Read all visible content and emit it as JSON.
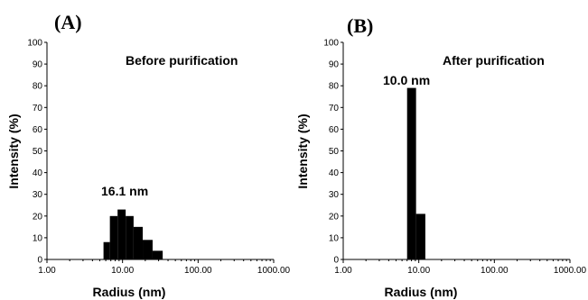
{
  "chart_data": [
    {
      "type": "bar",
      "panel_label": "(A)",
      "annotation": "Before purification",
      "peak_label": "16.1 nm",
      "xlabel": "Radius (nm)",
      "ylabel": "Intensity (%)",
      "x_scale": "log",
      "xlim": [
        1,
        1000
      ],
      "ylim": [
        0,
        100
      ],
      "x_ticks": [
        "1.00",
        "10.00",
        "100.00",
        "1000.00"
      ],
      "y_ticks": [
        "0",
        "10",
        "20",
        "30",
        "40",
        "50",
        "60",
        "70",
        "80",
        "90",
        "100"
      ],
      "grid": false,
      "bars": [
        {
          "x_from": 5.6,
          "x_to": 6.8,
          "value": 8
        },
        {
          "x_from": 6.8,
          "x_to": 8.6,
          "value": 20
        },
        {
          "x_from": 8.6,
          "x_to": 11.0,
          "value": 23
        },
        {
          "x_from": 11.0,
          "x_to": 14.0,
          "value": 20
        },
        {
          "x_from": 14.0,
          "x_to": 18.5,
          "value": 15
        },
        {
          "x_from": 18.5,
          "x_to": 25.0,
          "value": 9
        },
        {
          "x_from": 25.0,
          "x_to": 34.0,
          "value": 4
        }
      ]
    },
    {
      "type": "bar",
      "panel_label": "(B)",
      "annotation": "After purification",
      "peak_label": "10.0 nm",
      "xlabel": "Radius (nm)",
      "ylabel": "Intensity (%)",
      "x_scale": "log",
      "xlim": [
        1,
        1000
      ],
      "ylim": [
        0,
        100
      ],
      "x_ticks": [
        "1.00",
        "10.00",
        "100.00",
        "1000.00"
      ],
      "y_ticks": [
        "0",
        "10",
        "20",
        "30",
        "40",
        "50",
        "60",
        "70",
        "80",
        "90",
        "100"
      ],
      "grid": false,
      "bars": [
        {
          "x_from": 7.0,
          "x_to": 9.2,
          "value": 79
        },
        {
          "x_from": 9.2,
          "x_to": 12.2,
          "value": 21
        }
      ]
    }
  ]
}
